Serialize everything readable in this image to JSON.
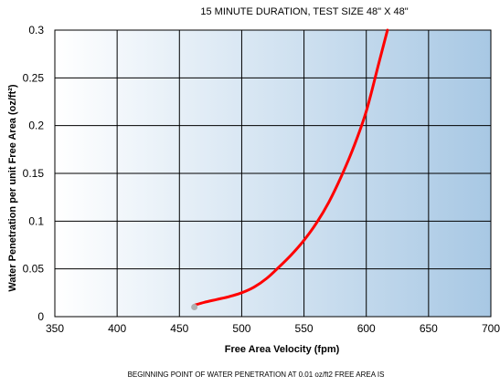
{
  "chart_data": {
    "type": "line",
    "title": "15 MINUTE DURATION, TEST SIZE 48\" X 48\"",
    "xlabel": "Free Area Velocity (fpm)",
    "ylabel": "Water Penetration per unit Free Area (oz/ft²)",
    "footer": "BEGINNING POINT OF WATER PENETRATION AT 0.01 oz/ft2 FREE AREA IS",
    "xlim": [
      350,
      700
    ],
    "ylim": [
      0,
      0.3
    ],
    "x_ticks": [
      350,
      400,
      450,
      500,
      550,
      600,
      650,
      700
    ],
    "y_ticks": [
      0,
      0.05,
      0.1,
      0.15,
      0.2,
      0.25,
      0.3
    ],
    "x_tick_labels": [
      "350",
      "400",
      "450",
      "500",
      "550",
      "600",
      "650",
      "700"
    ],
    "y_tick_labels": [
      "0",
      "0.05",
      "0.1",
      "0.15",
      "0.2",
      "0.25",
      "0.3"
    ],
    "grid": true,
    "series": [
      {
        "color": "#ff0000",
        "x": [
          462,
          470,
          480,
          490,
          500,
          510,
          520,
          530,
          540,
          550,
          560,
          570,
          580,
          590,
          600,
          610,
          617
        ],
        "y": [
          0.012,
          0.015,
          0.018,
          0.021,
          0.025,
          0.031,
          0.04,
          0.052,
          0.065,
          0.08,
          0.098,
          0.12,
          0.147,
          0.178,
          0.215,
          0.265,
          0.3
        ]
      }
    ],
    "start_point": {
      "x": 462,
      "y": 0.01,
      "color": "#b0b0b0"
    },
    "colors": {
      "background_left": "#ffffff",
      "background_right": "#a8c8e4",
      "grid": "#000000",
      "line": "#ff0000"
    }
  }
}
